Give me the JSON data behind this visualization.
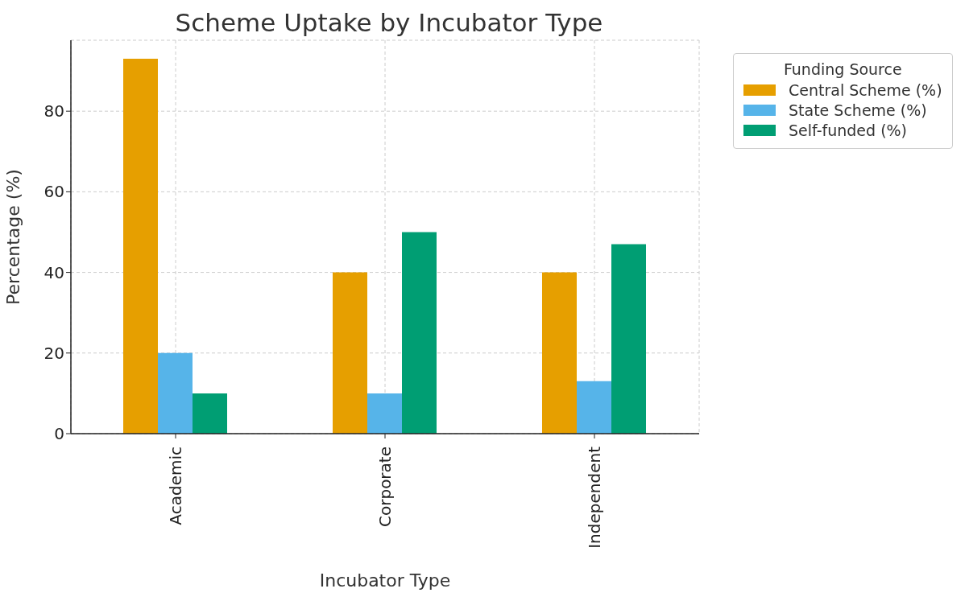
{
  "chart_data": {
    "type": "bar",
    "title": "Scheme Uptake by Incubator Type",
    "xlabel": "Incubator Type",
    "ylabel": "Percentage (%)",
    "legend_title": "Funding Source",
    "categories": [
      "Academic",
      "Corporate",
      "Independent"
    ],
    "series": [
      {
        "name": "Central Scheme (%)",
        "color": "#e69f00",
        "values": [
          93,
          40,
          40
        ]
      },
      {
        "name": "State Scheme (%)",
        "color": "#56b4e9",
        "values": [
          20,
          10,
          13
        ]
      },
      {
        "name": "Self-funded (%)",
        "color": "#009e73",
        "values": [
          10,
          50,
          47
        ]
      }
    ],
    "ylim": [
      0,
      97.6
    ],
    "yticks": [
      0,
      20,
      40,
      60,
      80
    ],
    "grid": true,
    "legend": "top right"
  }
}
